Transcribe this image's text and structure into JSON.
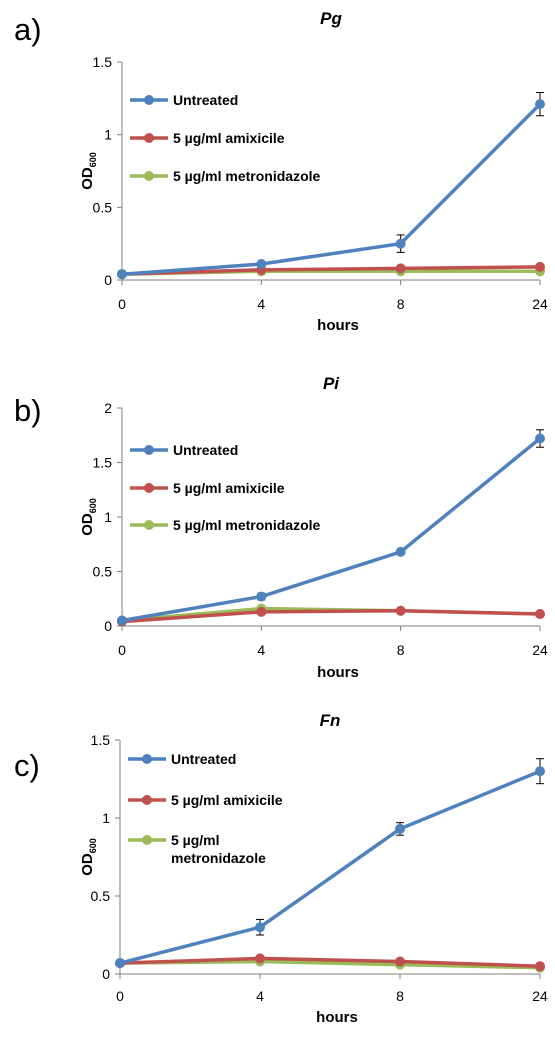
{
  "panels": [
    {
      "label": "a)",
      "chart_data": {
        "type": "line",
        "title": "Pg",
        "xlabel": "hours",
        "ylabel": "OD",
        "ylabel_sub": "600",
        "categories": [
          "0",
          "4",
          "8",
          "24"
        ],
        "ylim": [
          0,
          1.5
        ],
        "yticks": [
          "0",
          "0.5",
          "1",
          "1.5"
        ],
        "grid": false,
        "legend_position": "top-left",
        "series": [
          {
            "name": "Untreated",
            "color": "#4F81BD",
            "values": [
              0.04,
              0.11,
              0.25,
              1.21
            ],
            "errors": [
              0,
              0.01,
              0.06,
              0.08
            ]
          },
          {
            "name": "5 µg/ml amixicile",
            "color": "#C0504D",
            "values": [
              0.04,
              0.07,
              0.08,
              0.09
            ],
            "errors": [
              0,
              0,
              0,
              0.01
            ]
          },
          {
            "name": "5 µg/ml metronidazole",
            "color": "#9BBB59",
            "values": [
              0.04,
              0.06,
              0.06,
              0.06
            ],
            "errors": [
              0,
              0,
              0,
              0
            ]
          }
        ]
      }
    },
    {
      "label": "b)",
      "chart_data": {
        "type": "line",
        "title": "Pi",
        "xlabel": "hours",
        "ylabel": "OD",
        "ylabel_sub": "600",
        "categories": [
          "0",
          "4",
          "8",
          "24"
        ],
        "ylim": [
          0,
          2
        ],
        "yticks": [
          "0",
          "0.5",
          "1",
          "1.5",
          "2"
        ],
        "grid": false,
        "legend_position": "top-left",
        "series": [
          {
            "name": "Untreated",
            "color": "#4F81BD",
            "values": [
              0.05,
              0.27,
              0.68,
              1.72
            ],
            "errors": [
              0,
              0.03,
              0.02,
              0.08
            ]
          },
          {
            "name": "5 µg/ml amixicile",
            "color": "#C0504D",
            "values": [
              0.04,
              0.13,
              0.14,
              0.11
            ],
            "errors": [
              0,
              0,
              0,
              0
            ]
          },
          {
            "name": "5 µg/ml metronidazole",
            "color": "#9BBB59",
            "values": [
              0.05,
              0.16,
              0.14,
              0.11
            ],
            "errors": [
              0,
              0,
              0,
              0
            ]
          }
        ]
      }
    },
    {
      "label": "c)",
      "chart_data": {
        "type": "line",
        "title": "Fn",
        "xlabel": "hours",
        "ylabel": "OD",
        "ylabel_sub": "600",
        "categories": [
          "0",
          "4",
          "8",
          "24"
        ],
        "ylim": [
          0,
          1.5
        ],
        "yticks": [
          "0",
          "0.5",
          "1",
          "1.5"
        ],
        "grid": false,
        "legend_position": "top-left",
        "series": [
          {
            "name": "Untreated",
            "color": "#4F81BD",
            "values": [
              0.07,
              0.3,
              0.93,
              1.3
            ],
            "errors": [
              0,
              0.05,
              0.04,
              0.08
            ]
          },
          {
            "name": "5 µg/ml amixicile",
            "color": "#C0504D",
            "values": [
              0.07,
              0.1,
              0.08,
              0.05
            ],
            "errors": [
              0,
              0,
              0,
              0
            ]
          },
          {
            "name": "5 µg/ml metronidazole",
            "name_lines": [
              "5 µg/ml",
              "metronidazole"
            ],
            "color": "#9BBB59",
            "values": [
              0.07,
              0.08,
              0.06,
              0.04
            ],
            "errors": [
              0,
              0,
              0,
              0
            ]
          }
        ]
      }
    }
  ]
}
